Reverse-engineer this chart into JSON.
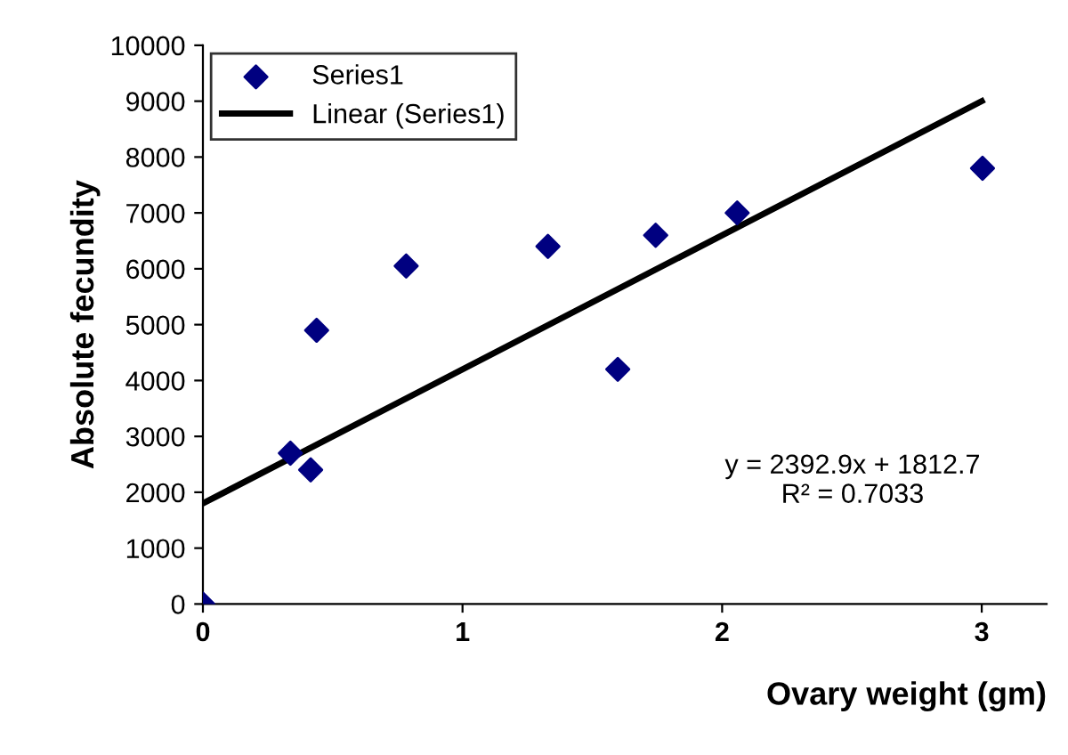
{
  "chart_data": {
    "type": "scatter",
    "xlabel": "Ovary weight (gm)",
    "ylabel": "Absolute fecundity",
    "xlim": [
      0,
      3.25
    ],
    "ylim": [
      0,
      10000
    ],
    "xticks": [
      0,
      1,
      2,
      3
    ],
    "yticks": [
      0,
      1000,
      2000,
      3000,
      4000,
      5000,
      6000,
      7000,
      8000,
      9000,
      10000
    ],
    "grid": false,
    "legend": "top left",
    "series": [
      {
        "name": "Series1",
        "marker": "diamond",
        "color": "#000080",
        "x": [
          0,
          0.337,
          0.415,
          0.438,
          0.783,
          1.329,
          1.598,
          1.744,
          2.058,
          3.003
        ],
        "values": [
          0,
          2700,
          2400,
          4900,
          6050,
          6400,
          4200,
          6600,
          7000,
          7800
        ]
      },
      {
        "name": "Linear (Series1)",
        "type": "line",
        "color": "#000000",
        "line_style": "solid",
        "x": [
          0,
          3.0
        ],
        "values": [
          1800,
          9000
        ]
      }
    ],
    "annotations": [
      "y = 2392.9x + 1812.7\nR² = 0.7033"
    ]
  }
}
